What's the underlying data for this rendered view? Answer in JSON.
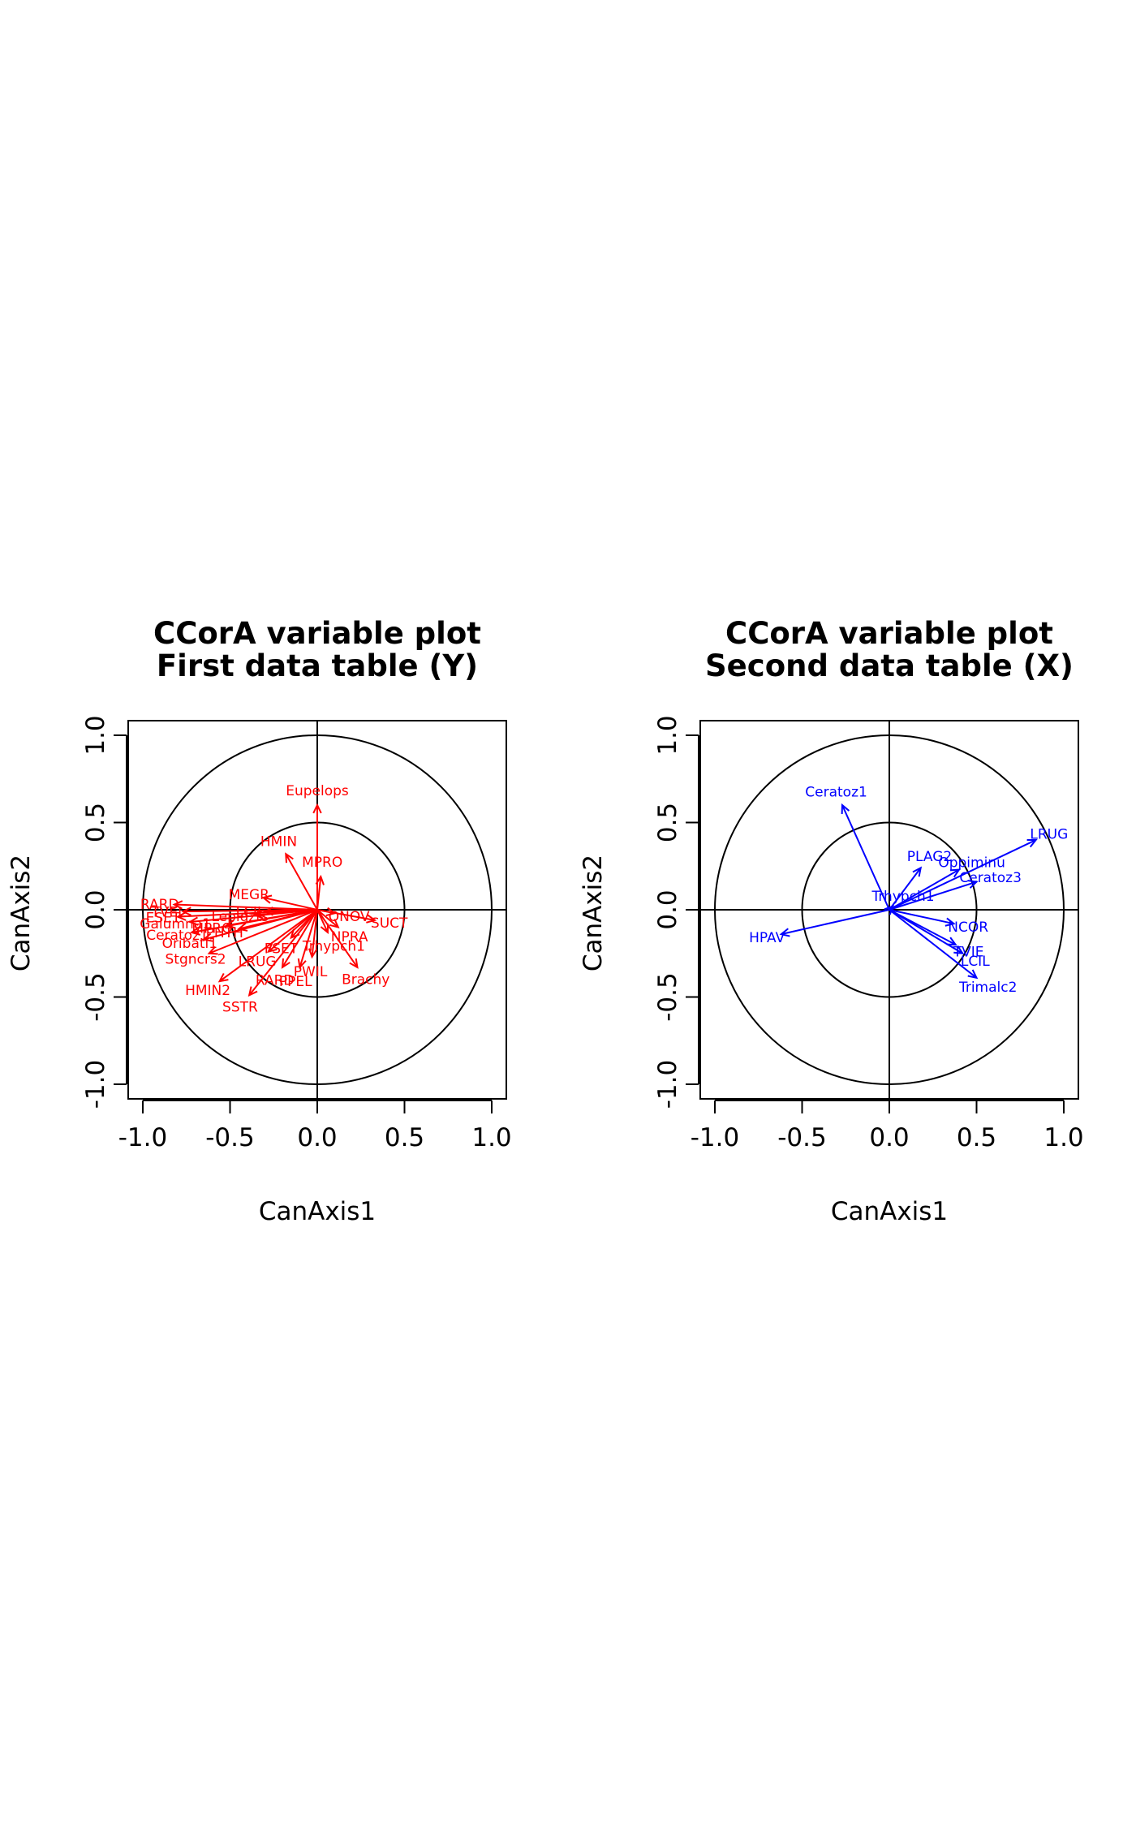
{
  "chart_data": [
    {
      "type": "scatter",
      "title": "CCorA variable plot",
      "subtitle": "First data table (Y)",
      "xlabel": "CanAxis1",
      "ylabel": "CanAxis2",
      "xlim": [
        -1.0,
        1.0
      ],
      "ylim": [
        -1.0,
        1.0
      ],
      "xticks": [
        "-1.0",
        "-0.5",
        "0.0",
        "0.5",
        "1.0"
      ],
      "yticks": [
        "-1.0",
        "-0.5",
        "0.0",
        "0.5",
        "1.0"
      ],
      "circles": [
        1.0,
        0.5
      ],
      "color": "#ff0000",
      "variables": [
        {
          "name": "Eupelops",
          "x": 0.0,
          "y": 0.6
        },
        {
          "name": "HMIN",
          "x": -0.18,
          "y": 0.32
        },
        {
          "name": "MPRO",
          "x": 0.02,
          "y": 0.19
        },
        {
          "name": "MEGR",
          "x": -0.31,
          "y": 0.07
        },
        {
          "name": "RARD",
          "x": -0.82,
          "y": 0.03
        },
        {
          "name": "TVEL",
          "x": -0.77,
          "y": -0.01
        },
        {
          "name": "ESET",
          "x": -0.8,
          "y": -0.04
        },
        {
          "name": "Galumna1",
          "x": -0.73,
          "y": -0.07
        },
        {
          "name": "Lepidzts",
          "x": -0.36,
          "y": -0.03
        },
        {
          "name": "LCIL",
          "x": -0.3,
          "y": -0.01
        },
        {
          "name": "ONOV",
          "x": 0.1,
          "y": -0.02
        },
        {
          "name": "SUCT",
          "x": 0.33,
          "y": -0.06
        },
        {
          "name": "NPRA",
          "x": 0.12,
          "y": -0.1
        },
        {
          "name": "Brachy",
          "x": 0.23,
          "y": -0.33
        },
        {
          "name": "PPEL",
          "x": -0.1,
          "y": -0.33
        },
        {
          "name": "SSTR",
          "x": -0.39,
          "y": -0.49
        },
        {
          "name": "HMIN2",
          "x": -0.56,
          "y": -0.41
        },
        {
          "name": "Stgncrs2",
          "x": -0.62,
          "y": -0.25
        },
        {
          "name": "Oribatl1",
          "x": -0.65,
          "y": -0.17
        },
        {
          "name": "Ceratoz1",
          "x": -0.72,
          "y": -0.13
        },
        {
          "name": "MPRO",
          "x": -0.52,
          "y": -0.09
        },
        {
          "name": "PHTH",
          "x": -0.45,
          "y": -0.11
        },
        {
          "name": "RARD",
          "x": -0.2,
          "y": -0.33
        },
        {
          "name": "LRUG",
          "x": -0.28,
          "y": -0.24
        },
        {
          "name": "PWIL",
          "x": -0.03,
          "y": -0.27
        },
        {
          "name": "FSET",
          "x": -0.15,
          "y": -0.16
        },
        {
          "name": "Trhypch1",
          "x": 0.06,
          "y": -0.13
        }
      ]
    },
    {
      "type": "scatter",
      "title": "CCorA variable plot",
      "subtitle": "Second data table (X)",
      "xlabel": "CanAxis1",
      "ylabel": "CanAxis2",
      "xlim": [
        -1.0,
        1.0
      ],
      "ylim": [
        -1.0,
        1.0
      ],
      "xticks": [
        "-1.0",
        "-0.5",
        "0.0",
        "0.5",
        "1.0"
      ],
      "yticks": [
        "-1.0",
        "-0.5",
        "0.0",
        "0.5",
        "1.0"
      ],
      "circles": [
        1.0,
        0.5
      ],
      "color": "#0000ff",
      "variables": [
        {
          "name": "Ceratoz1",
          "x": -0.27,
          "y": 0.6
        },
        {
          "name": "LRUG",
          "x": 0.84,
          "y": 0.4
        },
        {
          "name": "PLAG2",
          "x": 0.18,
          "y": 0.24
        },
        {
          "name": "Oppiminu",
          "x": 0.4,
          "y": 0.23
        },
        {
          "name": "Ceratoz3",
          "x": 0.5,
          "y": 0.16
        },
        {
          "name": "Trhypch1",
          "x": 0.02,
          "y": 0.02
        },
        {
          "name": "HPAV",
          "x": -0.62,
          "y": -0.14
        },
        {
          "name": "NCOR",
          "x": 0.37,
          "y": -0.08
        },
        {
          "name": "TVIE",
          "x": 0.38,
          "y": -0.2
        },
        {
          "name": "LCIL",
          "x": 0.42,
          "y": -0.25
        },
        {
          "name": "Trimalc2",
          "x": 0.5,
          "y": -0.39
        }
      ]
    }
  ]
}
